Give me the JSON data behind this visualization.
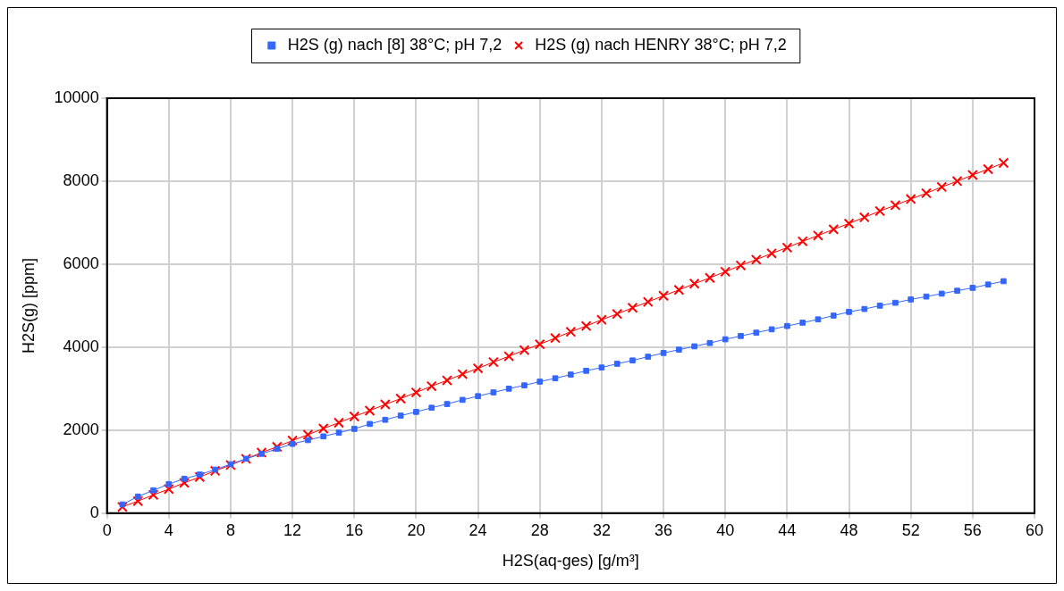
{
  "chart_data": {
    "type": "line",
    "xlabel": "H2S(aq-ges) [g/m³]",
    "ylabel": "H2S(g) [ppm]",
    "x": [
      1,
      2,
      3,
      4,
      5,
      6,
      7,
      8,
      9,
      10,
      11,
      12,
      13,
      14,
      15,
      16,
      17,
      18,
      19,
      20,
      21,
      22,
      23,
      24,
      25,
      26,
      27,
      28,
      29,
      30,
      31,
      32,
      33,
      34,
      35,
      36,
      37,
      38,
      39,
      40,
      41,
      42,
      43,
      44,
      45,
      46,
      47,
      48,
      49,
      50,
      51,
      52,
      53,
      54,
      55,
      56,
      57,
      58
    ],
    "series": [
      {
        "name": "H2S (g) nach [8] 38°C; pH 7,2",
        "color": "#3366ff",
        "marker": "square",
        "values": [
          210,
          400,
          550,
          700,
          830,
          930,
          1050,
          1180,
          1310,
          1430,
          1550,
          1670,
          1760,
          1850,
          1940,
          2030,
          2150,
          2250,
          2350,
          2440,
          2540,
          2630,
          2730,
          2820,
          2910,
          3000,
          3080,
          3170,
          3250,
          3340,
          3430,
          3510,
          3600,
          3680,
          3770,
          3860,
          3940,
          4020,
          4100,
          4190,
          4270,
          4350,
          4430,
          4510,
          4590,
          4670,
          4760,
          4850,
          4920,
          5000,
          5070,
          5150,
          5220,
          5290,
          5360,
          5430,
          5510,
          5590
        ]
      },
      {
        "name": "H2S (g) nach HENRY 38°C; pH 7,2",
        "color": "#ff0000",
        "marker": "cross",
        "values": [
          150,
          290,
          440,
          580,
          730,
          870,
          1020,
          1160,
          1310,
          1460,
          1600,
          1750,
          1890,
          2040,
          2180,
          2330,
          2470,
          2620,
          2760,
          2910,
          3060,
          3200,
          3350,
          3490,
          3640,
          3780,
          3930,
          4070,
          4220,
          4370,
          4510,
          4660,
          4800,
          4950,
          5090,
          5240,
          5380,
          5530,
          5670,
          5820,
          5970,
          6110,
          6260,
          6400,
          6550,
          6690,
          6840,
          6980,
          7130,
          7280,
          7420,
          7570,
          7710,
          7860,
          8000,
          8150,
          8290,
          8440
        ]
      }
    ],
    "xlim": [
      0,
      60
    ],
    "xticks": [
      0,
      4,
      8,
      12,
      16,
      20,
      24,
      28,
      32,
      36,
      40,
      44,
      48,
      52,
      56,
      60
    ],
    "ylim": [
      0,
      10000
    ],
    "yticks": [
      0,
      2000,
      4000,
      6000,
      8000,
      10000
    ],
    "grid": true,
    "legend": "top",
    "line_style": "solid"
  }
}
